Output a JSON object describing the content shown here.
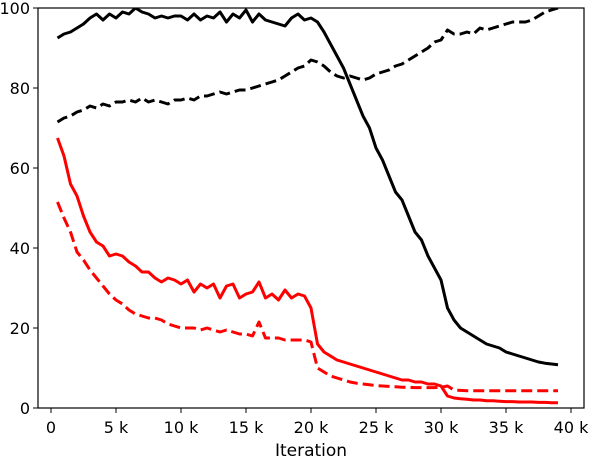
{
  "chart_data": {
    "type": "line",
    "xlabel": "Iteration",
    "ylabel": "",
    "title": "",
    "xlim": [
      -1000,
      41000
    ],
    "ylim": [
      0,
      100
    ],
    "xticks": [
      {
        "value": 0,
        "label": "0"
      },
      {
        "value": 5000,
        "label": "5 k"
      },
      {
        "value": 10000,
        "label": "10 k"
      },
      {
        "value": 15000,
        "label": "15 k"
      },
      {
        "value": 20000,
        "label": "20 k"
      },
      {
        "value": 25000,
        "label": "25 k"
      },
      {
        "value": 30000,
        "label": "30 k"
      },
      {
        "value": 35000,
        "label": "35 k"
      },
      {
        "value": 40000,
        "label": "40 k"
      }
    ],
    "yticks": [
      {
        "value": 0,
        "label": "0"
      },
      {
        "value": 20,
        "label": "20"
      },
      {
        "value": 40,
        "label": "40"
      },
      {
        "value": 60,
        "label": "60"
      },
      {
        "value": 80,
        "label": "80"
      },
      {
        "value": 100,
        "label": "100"
      }
    ],
    "grid": false,
    "legend": "none",
    "series": [
      {
        "color": "#000000",
        "style": "solid",
        "x": [
          500,
          1000,
          1500,
          2000,
          2500,
          3000,
          3500,
          4000,
          4500,
          5000,
          5500,
          6000,
          6500,
          7000,
          7500,
          8000,
          8500,
          9000,
          9500,
          10000,
          10500,
          11000,
          11500,
          12000,
          12500,
          13000,
          13500,
          14000,
          14500,
          15000,
          15500,
          16000,
          16500,
          17000,
          17500,
          18000,
          18500,
          19000,
          19500,
          20000,
          20500,
          21000,
          21500,
          22000,
          22500,
          23000,
          23500,
          24000,
          24500,
          25000,
          25500,
          26000,
          26500,
          27000,
          27500,
          28000,
          28500,
          29000,
          29500,
          30000,
          30500,
          31000,
          31500,
          32000,
          32500,
          33000,
          33500,
          34000,
          34500,
          35000,
          35500,
          36000,
          36500,
          37000,
          37500,
          38000,
          38500,
          39000
        ],
        "y": [
          92.5,
          93.5,
          94,
          95,
          96,
          97.5,
          98.5,
          97,
          98.5,
          97.5,
          99,
          98.5,
          100,
          99,
          98.5,
          97.5,
          98,
          97.5,
          98,
          98,
          97,
          98.5,
          97,
          98,
          97.5,
          99,
          96.5,
          98.5,
          97.5,
          99.5,
          96.5,
          98.5,
          97,
          96.5,
          96,
          95.5,
          97.5,
          98.5,
          97,
          97.5,
          96.5,
          94,
          91,
          88,
          85,
          81,
          77,
          73,
          70,
          65,
          62,
          58,
          54,
          52,
          48,
          44,
          42,
          38,
          35,
          32,
          25,
          22,
          20,
          19,
          18,
          17,
          16,
          15.5,
          15,
          14,
          13.5,
          13,
          12.5,
          12,
          11.5,
          11.2,
          11,
          10.8
        ]
      },
      {
        "color": "#000000",
        "style": "dashed",
        "x": [
          500,
          1000,
          1500,
          2000,
          2500,
          3000,
          3500,
          4000,
          4500,
          5000,
          5500,
          6000,
          6500,
          7000,
          7500,
          8000,
          8500,
          9000,
          9500,
          10000,
          10500,
          11000,
          11500,
          12000,
          12500,
          13000,
          13500,
          14000,
          14500,
          15000,
          15500,
          16000,
          16500,
          17000,
          17500,
          18000,
          18500,
          19000,
          19500,
          20000,
          20500,
          21000,
          21500,
          22000,
          22500,
          23000,
          23500,
          24000,
          24500,
          25000,
          25500,
          26000,
          26500,
          27000,
          27500,
          28000,
          28500,
          29000,
          29500,
          30000,
          30500,
          31000,
          31500,
          32000,
          32500,
          33000,
          33500,
          34000,
          34500,
          35000,
          35500,
          36000,
          36500,
          37000,
          37500,
          38000,
          38500,
          39000
        ],
        "y": [
          71.5,
          72.5,
          73,
          74,
          74.5,
          75.5,
          75,
          76,
          75.5,
          76.5,
          76.5,
          77,
          76.5,
          77.5,
          76.5,
          77,
          76.5,
          76,
          77,
          77,
          77.5,
          77,
          78,
          78,
          78.5,
          79,
          78.5,
          79,
          79.5,
          79.5,
          80,
          80.5,
          81,
          81.5,
          82,
          83,
          84,
          85,
          85.5,
          87,
          86.5,
          85.5,
          84,
          83,
          82.5,
          83,
          82.5,
          82,
          82.5,
          83.5,
          84,
          84.5,
          85.5,
          86,
          87,
          88,
          89,
          90,
          91.5,
          92,
          94.5,
          93.5,
          93.5,
          94,
          93.5,
          95,
          94.5,
          95,
          95.5,
          96,
          96.5,
          96.5,
          96.5,
          97,
          98,
          99,
          99.5,
          100
        ]
      },
      {
        "color": "#ff0000",
        "style": "solid",
        "x": [
          500,
          1000,
          1500,
          2000,
          2500,
          3000,
          3500,
          4000,
          4500,
          5000,
          5500,
          6000,
          6500,
          7000,
          7500,
          8000,
          8500,
          9000,
          9500,
          10000,
          10500,
          11000,
          11500,
          12000,
          12500,
          13000,
          13500,
          14000,
          14500,
          15000,
          15500,
          16000,
          16500,
          17000,
          17500,
          18000,
          18500,
          19000,
          19500,
          20000,
          20500,
          21000,
          21500,
          22000,
          22500,
          23000,
          23500,
          24000,
          24500,
          25000,
          25500,
          26000,
          26500,
          27000,
          27500,
          28000,
          28500,
          29000,
          29500,
          30000,
          30500,
          31000,
          31500,
          32000,
          32500,
          33000,
          33500,
          34000,
          34500,
          35000,
          35500,
          36000,
          36500,
          37000,
          37500,
          38000,
          38500,
          39000
        ],
        "y": [
          67.5,
          63,
          56,
          53,
          48,
          44,
          41.5,
          40.5,
          38,
          38.5,
          38,
          36.5,
          35.5,
          34,
          34,
          32.5,
          31.5,
          32.5,
          32,
          31,
          32,
          29,
          31,
          30,
          31,
          27.5,
          30.5,
          31,
          27.5,
          28.5,
          29,
          31.5,
          27.5,
          28.5,
          27,
          29.5,
          27.5,
          28.5,
          28,
          25,
          16,
          14,
          13,
          12,
          11.5,
          11,
          10.5,
          10,
          9.5,
          9,
          8.5,
          8,
          7.5,
          7,
          7,
          6.5,
          6.5,
          6,
          6,
          5.5,
          3,
          2.5,
          2.3,
          2.2,
          2,
          2,
          1.8,
          1.8,
          1.7,
          1.6,
          1.6,
          1.5,
          1.5,
          1.5,
          1.4,
          1.4,
          1.3,
          1.3
        ]
      },
      {
        "color": "#ff0000",
        "style": "dashed",
        "x": [
          500,
          1000,
          1500,
          2000,
          2500,
          3000,
          3500,
          4000,
          4500,
          5000,
          5500,
          6000,
          6500,
          7000,
          7500,
          8000,
          8500,
          9000,
          9500,
          10000,
          10500,
          11000,
          11500,
          12000,
          12500,
          13000,
          13500,
          14000,
          14500,
          15000,
          15500,
          16000,
          16500,
          17000,
          17500,
          18000,
          18500,
          19000,
          19500,
          20000,
          20500,
          21000,
          21500,
          22000,
          22500,
          23000,
          23500,
          24000,
          24500,
          25000,
          25500,
          26000,
          26500,
          27000,
          27500,
          28000,
          28500,
          29000,
          29500,
          30000,
          30500,
          31000,
          31500,
          32000,
          32500,
          33000,
          33500,
          34000,
          34500,
          35000,
          35500,
          36000,
          36500,
          37000,
          37500,
          38000,
          38500,
          39000
        ],
        "y": [
          51.5,
          47.5,
          44,
          39,
          37,
          34.5,
          32.5,
          30.5,
          28.5,
          27,
          26,
          24.5,
          23.5,
          23,
          22.5,
          22.5,
          22,
          21,
          20.5,
          20,
          20,
          20,
          19.5,
          20,
          19.5,
          19,
          19.5,
          19,
          18.5,
          18.5,
          18,
          21.5,
          17.5,
          17.5,
          17.5,
          17,
          17,
          17,
          17,
          16.5,
          10,
          9,
          8,
          7.5,
          7,
          6.5,
          6.2,
          6,
          5.8,
          5.6,
          5.5,
          5.4,
          5.3,
          5.2,
          5.2,
          5.1,
          5.1,
          5.1,
          5.1,
          5.2,
          5.5,
          4.5,
          4.4,
          4.3,
          4.3,
          4.3,
          4.3,
          4.3,
          4.3,
          4.3,
          4.3,
          4.3,
          4.3,
          4.3,
          4.3,
          4.3,
          4.3,
          4.3
        ]
      }
    ]
  }
}
